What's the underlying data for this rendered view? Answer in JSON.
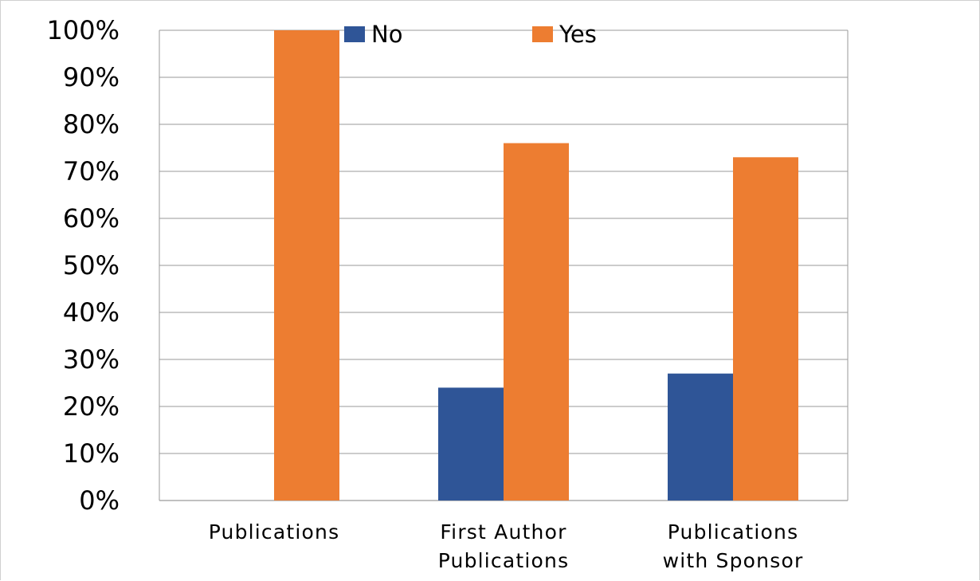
{
  "chart_data": {
    "type": "bar",
    "title": "",
    "xlabel": "",
    "ylabel": "",
    "categories": [
      "Publications",
      "First Author Publications",
      "Publications with Sponsor"
    ],
    "category_lines": [
      [
        "Publications"
      ],
      [
        "First Author",
        "Publications"
      ],
      [
        "Publications",
        "with  Sponsor"
      ]
    ],
    "series": [
      {
        "name": "No",
        "color": "#2f5597",
        "values": [
          0,
          24,
          27
        ]
      },
      {
        "name": "Yes",
        "color": "#ed7d31",
        "values": [
          100,
          76,
          73
        ]
      }
    ],
    "ylim": [
      0,
      100
    ],
    "yticks": [
      0,
      10,
      20,
      30,
      40,
      50,
      60,
      70,
      80,
      90,
      100
    ],
    "ytick_labels": [
      "0%",
      "10%",
      "20%",
      "30%",
      "40%",
      "50%",
      "60%",
      "70%",
      "80%",
      "90%",
      "100%"
    ],
    "grid": true,
    "legend_position": "top"
  }
}
